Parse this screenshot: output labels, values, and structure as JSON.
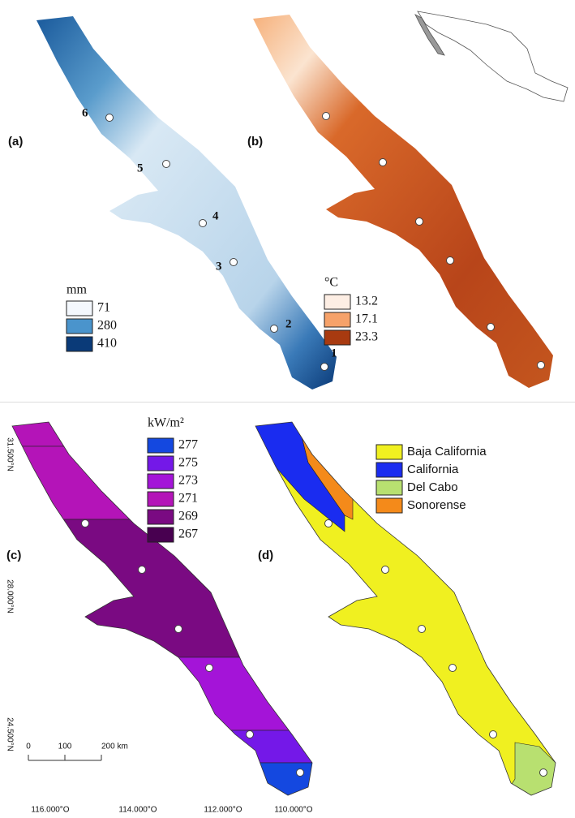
{
  "panel_labels": [
    "(a)",
    "(b)",
    "(c)",
    "(d)"
  ],
  "sites": [
    "1",
    "2",
    "3",
    "4",
    "5",
    "6"
  ],
  "precipitation_legend": {
    "title": "mm",
    "items": [
      {
        "label": "71",
        "color": "#f4f8fd"
      },
      {
        "label": "280",
        "color": "#4a94cc"
      },
      {
        "label": "410",
        "color": "#0a3a78"
      }
    ]
  },
  "temperature_legend": {
    "title": "°C",
    "items": [
      {
        "label": "13.2",
        "color": "#fdeee4"
      },
      {
        "label": "17.1",
        "color": "#f6a26a"
      },
      {
        "label": "23.3",
        "color": "#a83a10"
      }
    ]
  },
  "radiation_legend": {
    "title": "kW/m²",
    "items": [
      {
        "label": "277",
        "color": "#1448e0"
      },
      {
        "label": "275",
        "color": "#7418e8"
      },
      {
        "label": "273",
        "color": "#a414d8"
      },
      {
        "label": "271",
        "color": "#b414b8"
      },
      {
        "label": "269",
        "color": "#7a0a82"
      },
      {
        "label": "267",
        "color": "#480050"
      }
    ]
  },
  "region_legend": {
    "items": [
      {
        "label": "Baja California",
        "color": "#f0f020"
      },
      {
        "label": "California",
        "color": "#1a2cf0"
      },
      {
        "label": "Del Cabo",
        "color": "#b8e070"
      },
      {
        "label": "Sonorense",
        "color": "#f48a1a"
      }
    ]
  },
  "scale_bar": {
    "labels": [
      "0",
      "100",
      "200 km"
    ]
  },
  "latitudes": [
    "31.500°N",
    "28.000°N",
    "24.500°N"
  ],
  "longitudes": [
    "116.000°O",
    "114.000°O",
    "112.000°O",
    "110.000°O"
  ]
}
